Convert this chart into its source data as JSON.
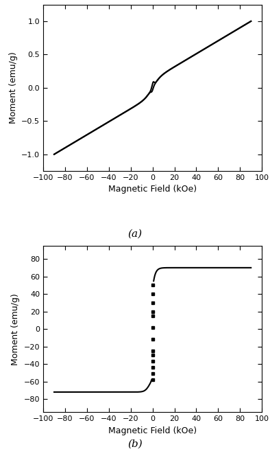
{
  "fig_width": 3.94,
  "fig_height": 6.67,
  "dpi": 100,
  "background_color": "#ffffff",
  "plot_a": {
    "xlabel": "Magnetic Field (kOe)",
    "ylabel": "Moment (emu/g)",
    "xlim": [
      -100,
      100
    ],
    "ylim": [
      -1.25,
      1.25
    ],
    "xticks": [
      -100,
      -80,
      -60,
      -40,
      -20,
      0,
      20,
      40,
      60,
      80,
      100
    ],
    "yticks": [
      -1.0,
      -0.5,
      0.0,
      0.5,
      1.0
    ],
    "label": "(a)",
    "line_color": "#000000",
    "line_width": 1.5
  },
  "plot_b": {
    "xlabel": "Magnetic Field (kOe)",
    "ylabel": "Moment (emu/g)",
    "xlim": [
      -100,
      100
    ],
    "ylim": [
      -95,
      95
    ],
    "xticks": [
      -100,
      -80,
      -60,
      -40,
      -20,
      0,
      20,
      40,
      60,
      80,
      100
    ],
    "yticks": [
      -80,
      -60,
      -40,
      -20,
      0,
      20,
      40,
      60,
      80
    ],
    "label": "(b)",
    "line_color": "#000000",
    "line_width": 1.5
  }
}
